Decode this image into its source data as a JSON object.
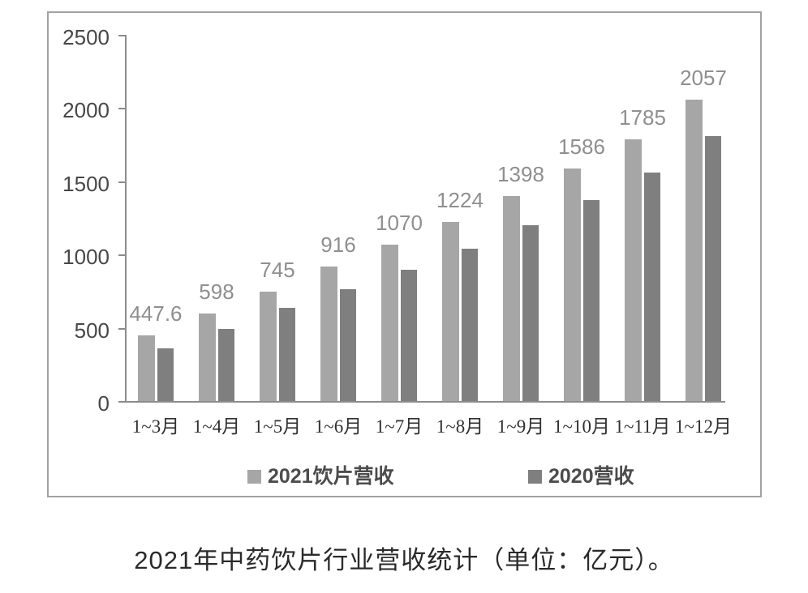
{
  "title": "2021年中药饮片行业营收统计（单位：亿元）。",
  "chart_data": {
    "type": "bar",
    "categories": [
      "1~3月",
      "1~4月",
      "1~5月",
      "1~6月",
      "1~7月",
      "1~8月",
      "1~9月",
      "1~10月",
      "1~11月",
      "1~12月"
    ],
    "series": [
      {
        "name": "2021饮片营收",
        "color": "#a6a6a6",
        "values": [
          447.6,
          598,
          745,
          916,
          1070,
          1224,
          1398,
          1586,
          1785,
          2057
        ],
        "data_labels": [
          "447.6",
          "598",
          "745",
          "916",
          "1070",
          "1224",
          "1398",
          "1586",
          "1785",
          "2057"
        ]
      },
      {
        "name": "2020营收",
        "color": "#7f7f7f",
        "values": [
          360,
          495,
          635,
          765,
          895,
          1040,
          1200,
          1370,
          1560,
          1810
        ],
        "data_labels": []
      }
    ],
    "ylim": [
      0,
      2500
    ],
    "yticks": [
      "0",
      "500",
      "1000",
      "1500",
      "2000",
      "2500"
    ],
    "xlabel": "",
    "ylabel": "",
    "grid": false,
    "legend_position": "bottom-inside",
    "data_labels_on": "2021饮片营收"
  }
}
